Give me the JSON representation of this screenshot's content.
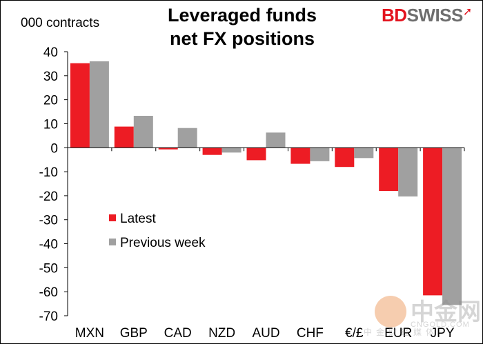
{
  "header": {
    "unit_label": "000 contracts",
    "title_line1": "Leveraged funds",
    "title_line2": "net FX positions"
  },
  "brand": {
    "logo_part1": "BD",
    "logo_part2": "SWISS",
    "accent_color": "#e3141f"
  },
  "watermark": {
    "text": "中金网",
    "domain": "CNGOLD.COM",
    "sub": "中金财经媒体"
  },
  "chart_data": {
    "type": "bar",
    "categories": [
      "MXN",
      "GBP",
      "CAD",
      "NZD",
      "AUD",
      "CHF",
      "€/£",
      "EUR",
      "JPY"
    ],
    "series": [
      {
        "name": "Latest",
        "color": "#ed1c24",
        "values": [
          35.2,
          8.8,
          -0.7,
          -3.0,
          -5.2,
          -6.7,
          -8.0,
          -18.0,
          -61.5
        ]
      },
      {
        "name": "Previous week",
        "color": "#a0a0a0",
        "values": [
          36.0,
          13.3,
          8.2,
          -2.0,
          6.3,
          -5.6,
          -4.3,
          -20.3,
          -65.5
        ]
      }
    ],
    "ylim": [
      -70,
      40
    ],
    "yticks": [
      40,
      30,
      20,
      10,
      0,
      -10,
      -20,
      -30,
      -40,
      -50,
      -60,
      -70
    ],
    "legend_position": "left-middle",
    "grid": false
  }
}
